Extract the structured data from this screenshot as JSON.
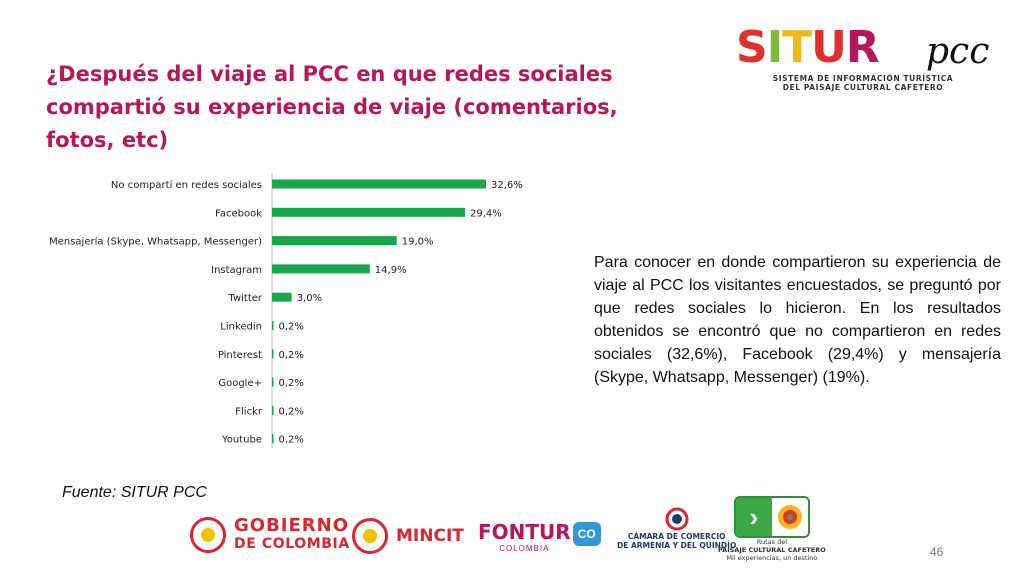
{
  "slide": {
    "title": "¿Después del viaje al PCC en que redes sociales compartió su experiencia de viaje  (comentarios, fotos, etc)",
    "description": "Para conocer en donde compartieron su experiencia de viaje al PCC los visitantes encuestados, se preguntó por que redes sociales lo hicieron. En los resultados obtenidos se encontró que no compartieron en redes sociales (32,6%), Facebook (29,4%) y mensajería (Skype, Whatsapp, Messenger) (19%).",
    "source": "Fuente: SITUR PCC",
    "page_number": "46"
  },
  "logo_situr": {
    "brand_letters": [
      "S",
      "I",
      "T",
      "U",
      "R"
    ],
    "brand_colors": [
      "#e0312e",
      "#7dbb3b",
      "#f2b81b",
      "#e0312e",
      "#b8165a"
    ],
    "suffix": "pcc",
    "subtitle_line1": "SISTEMA DE INFORMACIÓN TURÍSTICA",
    "subtitle_line2": "DEL PAISAJE CULTURAL CAFETERO"
  },
  "footer": {
    "gobierno_l1": "GOBIERNO",
    "gobierno_l2": "DE COLOMBIA",
    "mincit": "MINCIT",
    "fontur": "FONTUR",
    "fontur_sub": "COLOMBIA",
    "co_badge": "CO",
    "camara_l1": "CÁMARA DE COMERCIO",
    "camara_l2": "DE ARMENIA Y DEL QUINDÍO",
    "rutas_l1": "Rutas del",
    "rutas_l2": "PAISAJE CULTURAL CAFETERO",
    "rutas_l3": "Mil experiencias, un destino"
  },
  "chart_data": {
    "type": "bar",
    "orientation": "horizontal",
    "categories": [
      "No compartí en redes sociales",
      "Facebook",
      "Mensajería (Skype, Whatsapp, Messenger)",
      "Instagram",
      "Twitter",
      "Linkedin",
      "Pinterest",
      "Google+",
      "Flickr",
      "Youtube"
    ],
    "values": [
      32.6,
      29.4,
      19.0,
      14.9,
      3.0,
      0.2,
      0.2,
      0.2,
      0.2,
      0.2
    ],
    "value_labels": [
      "32,6%",
      "29,4%",
      "19,0%",
      "14,9%",
      "3,0%",
      "0,2%",
      "0,2%",
      "0,2%",
      "0,2%",
      "0,2%"
    ],
    "xlim": [
      0,
      32.6
    ],
    "bar_color": "#1aa64b",
    "grid": false,
    "legend": "none"
  }
}
